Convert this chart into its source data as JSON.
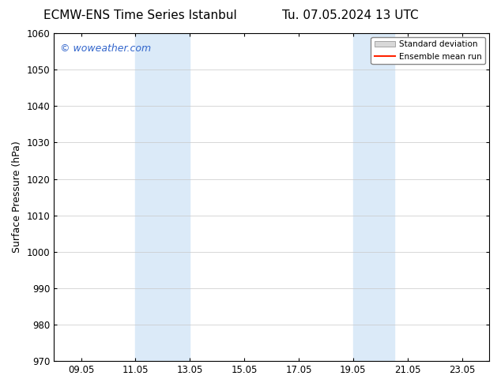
{
  "title_left": "ECMW-ENS Time Series Istanbul",
  "title_right": "Tu. 07.05.2024 13 UTC",
  "ylabel": "Surface Pressure (hPa)",
  "ylim": [
    970,
    1060
  ],
  "yticks": [
    970,
    980,
    990,
    1000,
    1010,
    1020,
    1030,
    1040,
    1050,
    1060
  ],
  "xtick_labels": [
    "09.05",
    "11.05",
    "13.05",
    "15.05",
    "17.05",
    "19.05",
    "21.05",
    "23.05"
  ],
  "xtick_positions": [
    1,
    3,
    5,
    7,
    9,
    11,
    13,
    15
  ],
  "xlim": [
    0,
    16
  ],
  "shaded_bands": [
    {
      "x_start": 3,
      "x_end": 5
    },
    {
      "x_start": 11,
      "x_end": 12.5
    }
  ],
  "shaded_color": "#dbeaf8",
  "background_color": "#ffffff",
  "grid_color": "#c8c8c8",
  "watermark_text": "© woweather.com",
  "watermark_color": "#3366cc",
  "legend_std_label": "Standard deviation",
  "legend_mean_label": "Ensemble mean run",
  "legend_std_facecolor": "#d8d8d8",
  "legend_std_edgecolor": "#888888",
  "legend_mean_color": "#ff2200",
  "title_fontsize": 11,
  "axis_label_fontsize": 9,
  "tick_fontsize": 8.5,
  "watermark_fontsize": 9
}
